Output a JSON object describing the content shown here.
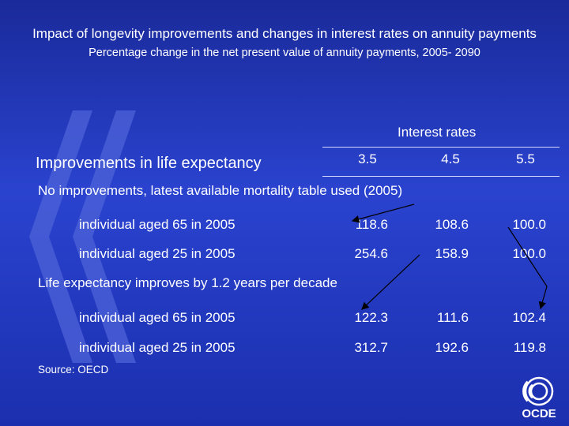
{
  "title": "Impact of longevity improvements and changes in interest rates on annuity payments",
  "subtitle": "Percentage change in the net present value of annuity payments, 2005- 2090",
  "interest_rates_label": "Interest rates",
  "life_expectancy_header": "Improvements in life expectancy",
  "rates": [
    "3.5",
    "4.5",
    "5.5"
  ],
  "sections": [
    {
      "heading": "No improvements, latest available mortality table used (2005)",
      "rows": [
        {
          "label": "individual aged 65 in 2005",
          "values": [
            "118.6",
            "108.6",
            "100.0"
          ]
        },
        {
          "label": "individual aged 25 in 2005",
          "values": [
            "254.6",
            "158.9",
            "100.0"
          ]
        }
      ]
    },
    {
      "heading": "Life expectancy improves by 1.2 years per decade",
      "rows": [
        {
          "label": "individual aged 65 in 2005",
          "values": [
            "122.3",
            "111.6",
            "102.4"
          ]
        },
        {
          "label": "individual aged 25 in 2005",
          "values": [
            "312.7",
            "192.6",
            "119.8"
          ]
        }
      ]
    }
  ],
  "source": "Source: OECD",
  "logo_text": "OCDE",
  "colors": {
    "background": "#2238c4",
    "text": "#ffffff",
    "watermark": "#5a6fe0"
  }
}
